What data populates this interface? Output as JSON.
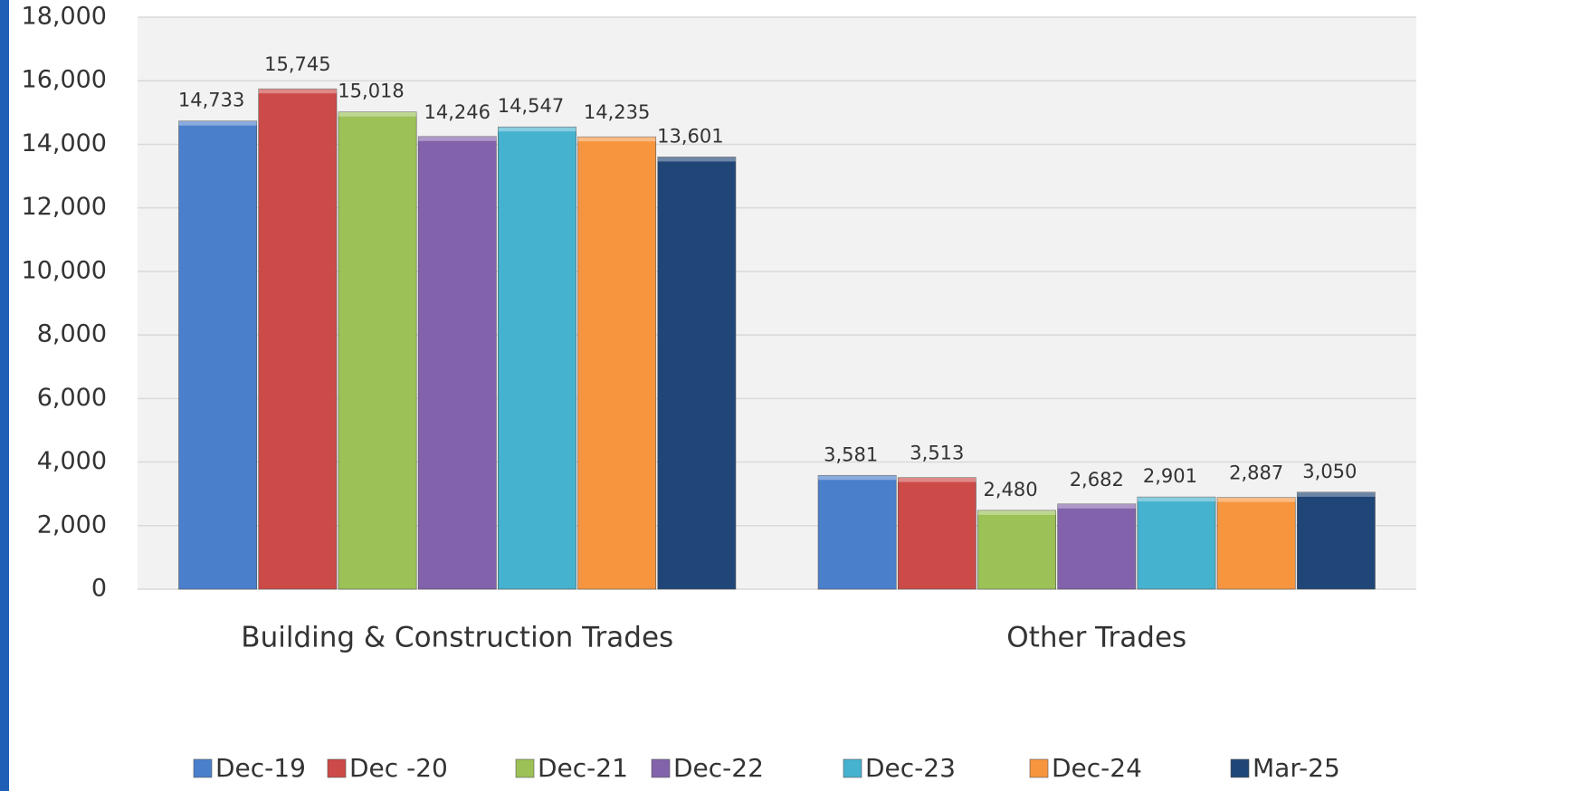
{
  "chart_data": {
    "type": "bar",
    "categories": [
      "Building & Construction Trades",
      "Other Trades"
    ],
    "series": [
      {
        "name": "Dec-19",
        "color": "#4a7fcc",
        "values": [
          14733,
          3581
        ],
        "value_labels": [
          "14,733",
          "3,581"
        ]
      },
      {
        "name": "Dec -20",
        "color": "#cc4a47",
        "values": [
          15745,
          3513
        ],
        "value_labels": [
          "15,745",
          "3,513"
        ]
      },
      {
        "name": "Dec-21",
        "color": "#9cc257",
        "values": [
          15018,
          2480
        ],
        "value_labels": [
          "15,018",
          "2,480"
        ]
      },
      {
        "name": "Dec-22",
        "color": "#8262ab",
        "values": [
          14246,
          2682
        ],
        "value_labels": [
          "14,246",
          "2,682"
        ]
      },
      {
        "name": "Dec-23",
        "color": "#45b2cf",
        "values": [
          14547,
          2901
        ],
        "value_labels": [
          "14,547",
          "2,901"
        ]
      },
      {
        "name": "Dec-24",
        "color": "#f7953f",
        "values": [
          14235,
          2887
        ],
        "value_labels": [
          "14,235",
          "2,887"
        ]
      },
      {
        "name": "Mar-25",
        "color": "#1f4677",
        "values": [
          13601,
          3050
        ],
        "value_labels": [
          "13,601",
          "3,050"
        ]
      }
    ],
    "ylim": [
      0,
      18000
    ],
    "yticks": [
      0,
      {
        "value": 2000,
        "label": "2,000"
      },
      {
        "value": 4000,
        "label": "4,000"
      },
      {
        "value": 6000,
        "label": "6,000"
      },
      {
        "value": 8000,
        "label": "8,000"
      },
      {
        "value": 10000,
        "label": "10,000"
      },
      {
        "value": 12000,
        "label": "12,000"
      },
      {
        "value": 14000,
        "label": "14,000"
      },
      {
        "value": 16000,
        "label": "16,000"
      },
      {
        "value": 18000,
        "label": "18,000"
      }
    ],
    "grid": true,
    "legend": "bottom"
  }
}
